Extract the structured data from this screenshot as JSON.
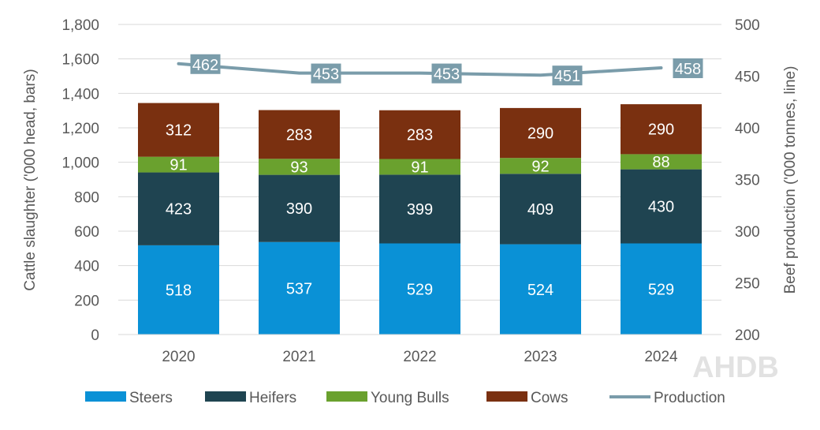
{
  "chart_data": {
    "type": "bar",
    "stacked": true,
    "categories": [
      "2020",
      "2021",
      "2022",
      "2023",
      "2024"
    ],
    "series": [
      {
        "name": "Steers",
        "color": "#0a91d6",
        "values": [
          518,
          537,
          529,
          524,
          529
        ]
      },
      {
        "name": "Heifers",
        "color": "#1f4451",
        "values": [
          423,
          390,
          399,
          409,
          430
        ]
      },
      {
        "name": "Young Bulls",
        "color": "#6aa12e",
        "values": [
          91,
          93,
          91,
          92,
          88
        ]
      },
      {
        "name": "Cows",
        "color": "#7a3010",
        "values": [
          312,
          283,
          283,
          290,
          290
        ]
      }
    ],
    "line_series": {
      "name": "Production",
      "type": "line",
      "axis": "right",
      "color": "#7a9caa",
      "values": [
        462,
        453,
        453,
        451,
        458
      ]
    },
    "ylabel": "Cattle slaughter ('000 head, bars)",
    "ylabel_right": "Beef production ('000 tonnes, line)",
    "ylim": [
      0,
      1800
    ],
    "ylim_right": [
      200,
      500
    ],
    "yticks": [
      "0",
      "200",
      "400",
      "600",
      "800",
      "1,000",
      "1,200",
      "1,400",
      "1,600",
      "1,800"
    ],
    "yticks_right": [
      "200",
      "250",
      "300",
      "350",
      "400",
      "450",
      "500"
    ],
    "grid": true,
    "legend_position": "bottom"
  },
  "logo": "AHDB"
}
